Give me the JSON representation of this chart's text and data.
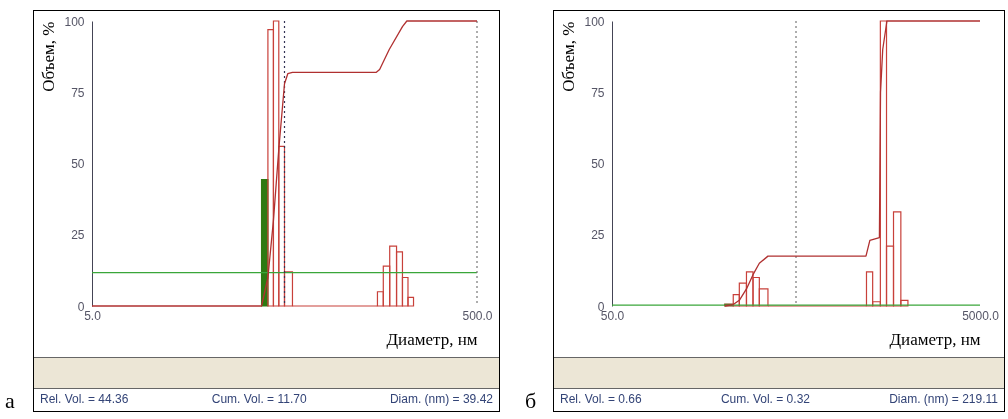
{
  "chart_data": [
    {
      "type": "histogram",
      "xlabel": "Диаметр, нм",
      "ylabel": "Объем, %",
      "log": "x",
      "xlim": [
        5,
        500
      ],
      "xticks": [
        {
          "value": 5,
          "label": "5.0"
        },
        {
          "value": 500,
          "label": "500.0"
        }
      ],
      "ylim": [
        0,
        100
      ],
      "yticks": [
        0,
        25,
        50,
        75,
        100
      ],
      "bins": [
        38,
        41,
        43.8,
        46.7,
        50,
        55,
        152,
        163,
        176,
        191,
        205,
        219,
        234
      ],
      "values": [
        44.36,
        97,
        100,
        56,
        12,
        0,
        5,
        14,
        21,
        19,
        10,
        3
      ],
      "colors": [
        "#2d7a12",
        "#c8403a",
        "#c8403a",
        "#c8403a",
        "#c8403a",
        "#c8403a",
        "#c8403a",
        "#c8403a",
        "#c8403a",
        "#c8403a",
        "#c8403a",
        "#c8403a"
      ],
      "series": [
        {
          "type": "line",
          "color": "#b03030",
          "x": [
            5,
            38,
            41,
            43.8,
            46.7,
            50,
            52,
            55,
            150,
            156,
            175,
            205,
            216,
            500
          ],
          "values": [
            0,
            0,
            10,
            30,
            55,
            78,
            81.5,
            82,
            82,
            83,
            90,
            98,
            100,
            100
          ]
        }
      ],
      "ref_lines": [
        {
          "axis": "y",
          "value": 11.7,
          "color": "#3aa63a"
        },
        {
          "axis": "x",
          "value": 50,
          "color": "#333355",
          "line_style": "dotted"
        },
        {
          "axis": "x",
          "value": 500,
          "color": "#777777",
          "line_style": "dotted"
        }
      ],
      "annotations": [
        "а",
        "Rel. Vol. = 44.36",
        "Cum. Vol. = 11.70",
        "Diam. (nm) = 39.42"
      ]
    },
    {
      "type": "histogram",
      "xlabel": "Диаметр, нм",
      "ylabel": "Объем, %",
      "log": "x",
      "xlim": [
        50,
        5000
      ],
      "xticks": [
        {
          "value": 50,
          "label": "50.0"
        },
        {
          "value": 5000,
          "label": "5000.0"
        }
      ],
      "ylim": [
        0,
        100
      ],
      "yticks": [
        0,
        25,
        50,
        75,
        100
      ],
      "bins": [
        205,
        228,
        246,
        269,
        292,
        316,
        352,
        1208,
        1305,
        1437,
        1552,
        1694,
        1857,
        2029
      ],
      "values": [
        0.66,
        4,
        8,
        12,
        10,
        6,
        0,
        12,
        1.5,
        100,
        21,
        33,
        2
      ],
      "colors": [
        "#7a4a1a",
        "#c8403a",
        "#c8403a",
        "#c8403a",
        "#c8403a",
        "#c8403a",
        "#c8403a",
        "#c8403a",
        "#c8403a",
        "#c8403a",
        "#c8403a",
        "#c8403a",
        "#c8403a"
      ],
      "series": [
        {
          "type": "line",
          "color": "#b03030",
          "x": [
            205,
            228,
            246,
            269,
            292,
            316,
            352,
            1200,
            1260,
            1420,
            1440,
            1480,
            1560,
            5000
          ],
          "values": [
            0,
            0.5,
            2,
            6,
            11,
            15,
            17.5,
            17.5,
            23,
            24,
            75,
            90,
            100,
            100
          ]
        }
      ],
      "ref_lines": [
        {
          "axis": "y",
          "value": 0.32,
          "color": "#3aa63a"
        },
        {
          "axis": "x",
          "value": 500,
          "color": "#777777",
          "line_style": "dotted"
        }
      ],
      "annotations": [
        "б",
        "Rel. Vol. = 0.66",
        "Cum. Vol. = 0.32",
        "Diam. (nm) = 219.11"
      ]
    }
  ]
}
